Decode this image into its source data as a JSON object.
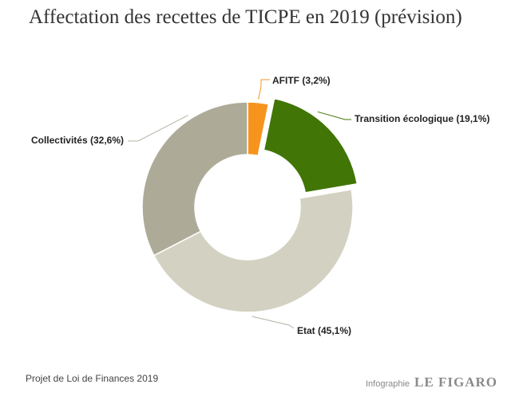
{
  "title": "Affectation des recettes de TICPE en 2019 (prévision)",
  "footer": {
    "source": "Projet de Loi de Finances 2019",
    "credit_prefix": "Infographie",
    "credit_brand": "LE FIGARO"
  },
  "chart_data": {
    "type": "pie",
    "title": "Affectation des recettes de TICPE en 2019 (prévision)",
    "slices": [
      {
        "name": "AFITF",
        "value": 3.2,
        "label": "AFITF (3,2%)",
        "color": "#F7941D",
        "exploded": false
      },
      {
        "name": "Transition écologique",
        "value": 19.1,
        "label": "Transition écologique (19,1%)",
        "color": "#417505",
        "exploded": true
      },
      {
        "name": "Etat",
        "value": 45.1,
        "label": "Etat (45,1%)",
        "color": "#D3D2C2",
        "exploded": false
      },
      {
        "name": "Collectivités",
        "value": 32.6,
        "label": "Collectivités (32,6%)",
        "color": "#ADAB97",
        "exploded": false
      }
    ]
  }
}
